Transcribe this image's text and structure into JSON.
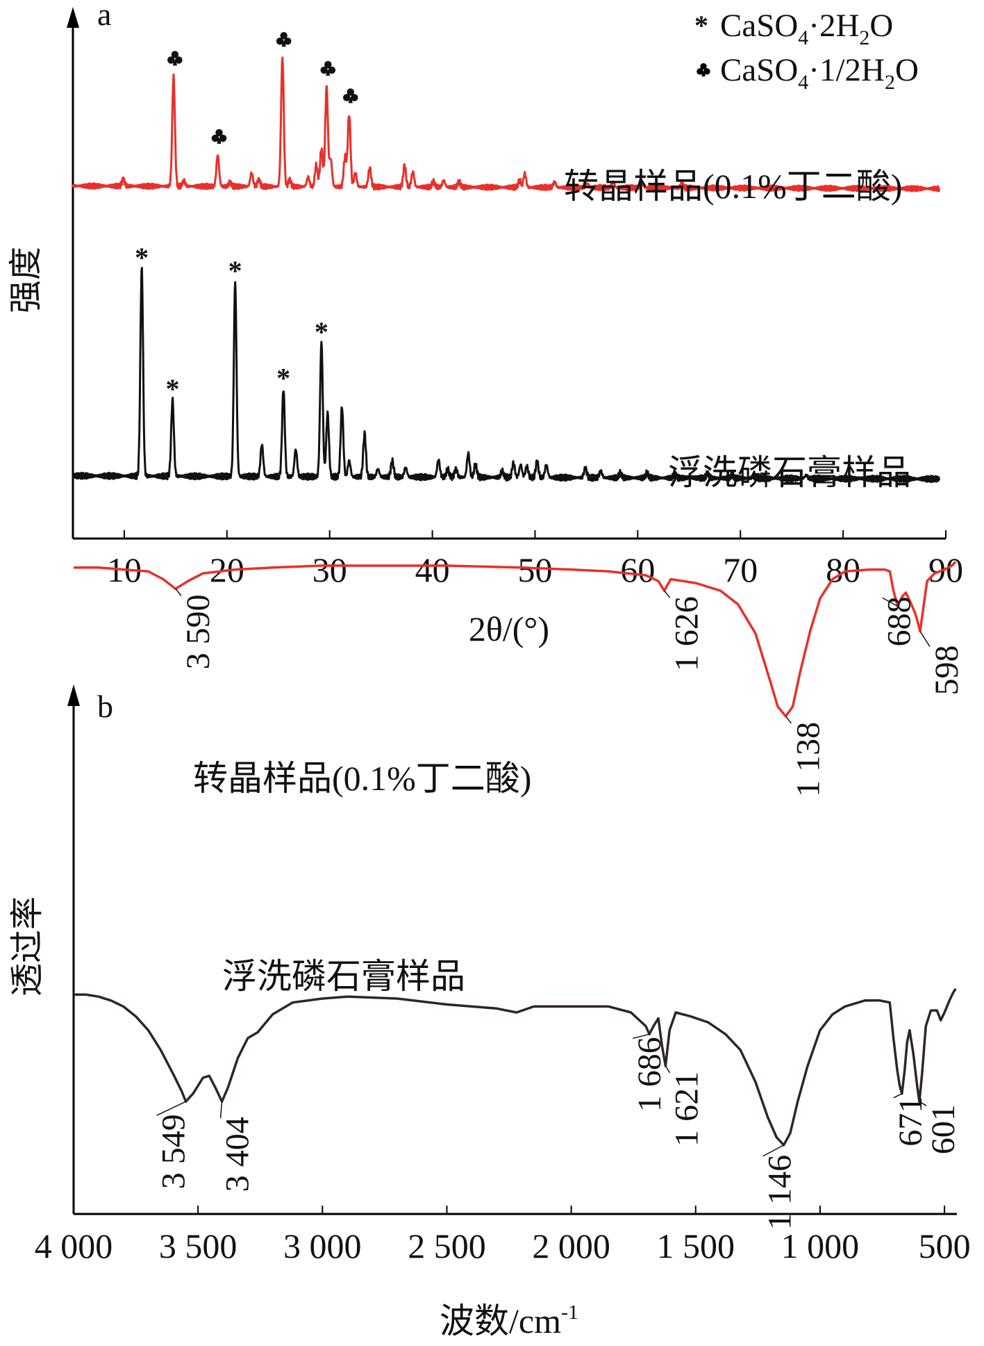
{
  "chart_data": [
    {
      "panel_label": "a",
      "type": "line",
      "xlabel": "2θ/(°)",
      "ylabel": "强度",
      "xlim": [
        5,
        90
      ],
      "xticks": [
        10,
        20,
        30,
        40,
        50,
        60,
        70,
        80,
        90
      ],
      "y_tick_labels": false,
      "legend": {
        "position": "top-right",
        "items": [
          {
            "marker": "asterisk",
            "label_main": "CaSO",
            "sub1": "4",
            "mid": "·2H",
            "sub2": "2",
            "end": "O"
          },
          {
            "marker": "club",
            "label_main": "CaSO",
            "sub1": "4",
            "mid": "·1/2H",
            "sub2": "2",
            "end": "O"
          }
        ]
      },
      "series": [
        {
          "name": "转晶样品(0.1%丁二酸)",
          "color": "#e8302a",
          "baseline": 0.19,
          "baseline_end": 0.17,
          "peaks": [
            [
              9.9,
              0.05
            ],
            [
              14.8,
              0.8
            ],
            [
              15.8,
              0.04
            ],
            [
              19.1,
              0.23
            ],
            [
              20.3,
              0.03
            ],
            [
              22.4,
              0.1
            ],
            [
              23.1,
              0.05
            ],
            [
              25.4,
              0.94
            ],
            [
              26.1,
              0.05
            ],
            [
              27.9,
              0.07
            ],
            [
              28.7,
              0.16
            ],
            [
              29.2,
              0.28
            ],
            [
              29.7,
              0.73
            ],
            [
              30.1,
              0.2
            ],
            [
              31.5,
              0.22
            ],
            [
              31.9,
              0.53
            ],
            [
              32.5,
              0.1
            ],
            [
              33.9,
              0.14
            ],
            [
              37.3,
              0.16
            ],
            [
              38.1,
              0.11
            ],
            [
              40.1,
              0.04
            ],
            [
              41.1,
              0.05
            ],
            [
              42.6,
              0.04
            ],
            [
              48.5,
              0.05
            ],
            [
              49.0,
              0.1
            ],
            [
              51.9,
              0.04
            ],
            [
              55.1,
              0.03
            ],
            [
              57.6,
              0.04
            ],
            [
              60.4,
              0.03
            ],
            [
              64.3,
              0.03
            ]
          ],
          "markers": [
            {
              "x": 14.8,
              "symbol": "club"
            },
            {
              "x": 19.1,
              "symbol": "club"
            },
            {
              "x": 25.4,
              "symbol": "club"
            },
            {
              "x": 29.7,
              "symbol": "club"
            },
            {
              "x": 31.9,
              "symbol": "club"
            }
          ]
        },
        {
          "name": "浮洗磷石膏样品",
          "color": "#111111",
          "baseline": 0.11,
          "baseline_end": 0.09,
          "peaks": [
            [
              11.7,
              1.3
            ],
            [
              14.7,
              0.48
            ],
            [
              20.8,
              1.22
            ],
            [
              23.4,
              0.2
            ],
            [
              25.5,
              0.55
            ],
            [
              26.7,
              0.17
            ],
            [
              29.2,
              0.84
            ],
            [
              29.8,
              0.4
            ],
            [
              31.2,
              0.44
            ],
            [
              31.9,
              0.1
            ],
            [
              33.4,
              0.27
            ],
            [
              34.7,
              0.05
            ],
            [
              36.1,
              0.1
            ],
            [
              37.4,
              0.06
            ],
            [
              40.6,
              0.11
            ],
            [
              41.5,
              0.05
            ],
            [
              42.3,
              0.05
            ],
            [
              43.5,
              0.15
            ],
            [
              44.2,
              0.08
            ],
            [
              46.8,
              0.04
            ],
            [
              47.9,
              0.09
            ],
            [
              48.6,
              0.08
            ],
            [
              49.2,
              0.07
            ],
            [
              50.2,
              0.1
            ],
            [
              51.1,
              0.08
            ],
            [
              54.9,
              0.06
            ],
            [
              56.4,
              0.04
            ],
            [
              58.3,
              0.03
            ],
            [
              60.9,
              0.03
            ],
            [
              63.6,
              0.03
            ],
            [
              66.8,
              0.03
            ],
            [
              69.2,
              0.02
            ],
            [
              71.3,
              0.02
            ],
            [
              76.4,
              0.02
            ]
          ],
          "markers": [
            {
              "x": 11.7,
              "symbol": "asterisk"
            },
            {
              "x": 14.7,
              "symbol": "asterisk"
            },
            {
              "x": 20.8,
              "symbol": "asterisk"
            },
            {
              "x": 25.5,
              "symbol": "asterisk"
            },
            {
              "x": 29.2,
              "symbol": "asterisk"
            }
          ]
        }
      ]
    },
    {
      "panel_label": "b",
      "type": "line",
      "xlabel": "波数/cm",
      "xlabel_sup": "-1",
      "ylabel": "透过率",
      "xlim": [
        4000,
        450
      ],
      "x_reversed": true,
      "xticks": [
        4000,
        3500,
        3000,
        2500,
        2000,
        1500,
        1000,
        500
      ],
      "xtick_labels": [
        "4 000",
        "3 500",
        "3 000",
        "2 500",
        "2 000",
        "1 500",
        "1 000",
        "500"
      ],
      "y_tick_labels": false,
      "series": [
        {
          "name": "转晶样品(0.1%丁二酸)",
          "color": "#e8302a",
          "points": [
            [
              4000,
              0.99
            ],
            [
              3900,
              0.99
            ],
            [
              3800,
              0.98
            ],
            [
              3700,
              0.97
            ],
            [
              3640,
              0.93
            ],
            [
              3590,
              0.88
            ],
            [
              3540,
              0.92
            ],
            [
              3480,
              0.96
            ],
            [
              3350,
              0.98
            ],
            [
              3200,
              0.99
            ],
            [
              3000,
              1.0
            ],
            [
              2800,
              1.0
            ],
            [
              2500,
              1.0
            ],
            [
              2200,
              0.99
            ],
            [
              2000,
              0.98
            ],
            [
              1850,
              0.97
            ],
            [
              1700,
              0.95
            ],
            [
              1650,
              0.92
            ],
            [
              1626,
              0.87
            ],
            [
              1600,
              0.93
            ],
            [
              1500,
              0.91
            ],
            [
              1400,
              0.87
            ],
            [
              1330,
              0.8
            ],
            [
              1260,
              0.65
            ],
            [
              1200,
              0.4
            ],
            [
              1170,
              0.27
            ],
            [
              1138,
              0.22
            ],
            [
              1110,
              0.27
            ],
            [
              1080,
              0.45
            ],
            [
              1040,
              0.66
            ],
            [
              1000,
              0.83
            ],
            [
              950,
              0.93
            ],
            [
              900,
              0.97
            ],
            [
              800,
              0.98
            ],
            [
              740,
              0.98
            ],
            [
              720,
              0.97
            ],
            [
              705,
              0.87
            ],
            [
              688,
              0.79
            ],
            [
              670,
              0.84
            ],
            [
              655,
              0.86
            ],
            [
              640,
              0.82
            ],
            [
              620,
              0.76
            ],
            [
              610,
              0.72
            ],
            [
              598,
              0.66
            ],
            [
              585,
              0.78
            ],
            [
              570,
              0.92
            ],
            [
              540,
              0.96
            ],
            [
              500,
              0.98
            ],
            [
              470,
              1.0
            ],
            [
              455,
              1.02
            ]
          ],
          "annotations": [
            {
              "x": 3590,
              "text": "3 590"
            },
            {
              "x": 1626,
              "text": "1 626"
            },
            {
              "x": 1138,
              "text": "1 138"
            },
            {
              "x": 688,
              "text": "688"
            },
            {
              "x": 598,
              "text": "598"
            }
          ]
        },
        {
          "name": "浮洗磷石膏样品",
          "color": "#2e2624",
          "points": [
            [
              4000,
              1.02
            ],
            [
              3950,
              1.02
            ],
            [
              3900,
              1.01
            ],
            [
              3850,
              0.99
            ],
            [
              3800,
              0.96
            ],
            [
              3750,
              0.91
            ],
            [
              3700,
              0.84
            ],
            [
              3650,
              0.74
            ],
            [
              3600,
              0.62
            ],
            [
              3565,
              0.53
            ],
            [
              3549,
              0.48
            ],
            [
              3520,
              0.52
            ],
            [
              3480,
              0.6
            ],
            [
              3455,
              0.61
            ],
            [
              3430,
              0.55
            ],
            [
              3404,
              0.48
            ],
            [
              3380,
              0.55
            ],
            [
              3340,
              0.7
            ],
            [
              3300,
              0.8
            ],
            [
              3260,
              0.83
            ],
            [
              3200,
              0.92
            ],
            [
              3120,
              0.98
            ],
            [
              3000,
              1.0
            ],
            [
              2900,
              1.01
            ],
            [
              2700,
              1.0
            ],
            [
              2500,
              0.97
            ],
            [
              2400,
              0.96
            ],
            [
              2300,
              0.95
            ],
            [
              2220,
              0.93
            ],
            [
              2150,
              0.96
            ],
            [
              2000,
              0.96
            ],
            [
              1850,
              0.96
            ],
            [
              1760,
              0.93
            ],
            [
              1700,
              0.86
            ],
            [
              1686,
              0.82
            ],
            [
              1670,
              0.86
            ],
            [
              1650,
              0.9
            ],
            [
              1635,
              0.76
            ],
            [
              1621,
              0.66
            ],
            [
              1605,
              0.84
            ],
            [
              1580,
              0.93
            ],
            [
              1520,
              0.91
            ],
            [
              1450,
              0.88
            ],
            [
              1380,
              0.82
            ],
            [
              1320,
              0.74
            ],
            [
              1260,
              0.58
            ],
            [
              1210,
              0.4
            ],
            [
              1175,
              0.3
            ],
            [
              1146,
              0.26
            ],
            [
              1120,
              0.32
            ],
            [
              1090,
              0.48
            ],
            [
              1050,
              0.66
            ],
            [
              1000,
              0.84
            ],
            [
              950,
              0.92
            ],
            [
              900,
              0.96
            ],
            [
              820,
              0.99
            ],
            [
              760,
              0.99
            ],
            [
              720,
              0.98
            ],
            [
              705,
              0.8
            ],
            [
              690,
              0.64
            ],
            [
              680,
              0.56
            ],
            [
              671,
              0.52
            ],
            [
              660,
              0.64
            ],
            [
              650,
              0.78
            ],
            [
              640,
              0.84
            ],
            [
              625,
              0.72
            ],
            [
              610,
              0.56
            ],
            [
              601,
              0.48
            ],
            [
              590,
              0.62
            ],
            [
              575,
              0.86
            ],
            [
              555,
              0.94
            ],
            [
              530,
              0.94
            ],
            [
              515,
              0.89
            ],
            [
              500,
              0.93
            ],
            [
              480,
              0.99
            ],
            [
              465,
              1.03
            ],
            [
              455,
              1.05
            ]
          ],
          "annotations": [
            {
              "x": 3549,
              "text": "3 549"
            },
            {
              "x": 3404,
              "text": "3 404"
            },
            {
              "x": 1686,
              "text": "1 686"
            },
            {
              "x": 1621,
              "text": "1 621"
            },
            {
              "x": 1146,
              "text": "1 146"
            },
            {
              "x": 671,
              "text": "671"
            },
            {
              "x": 601,
              "text": "601"
            }
          ]
        }
      ]
    }
  ]
}
